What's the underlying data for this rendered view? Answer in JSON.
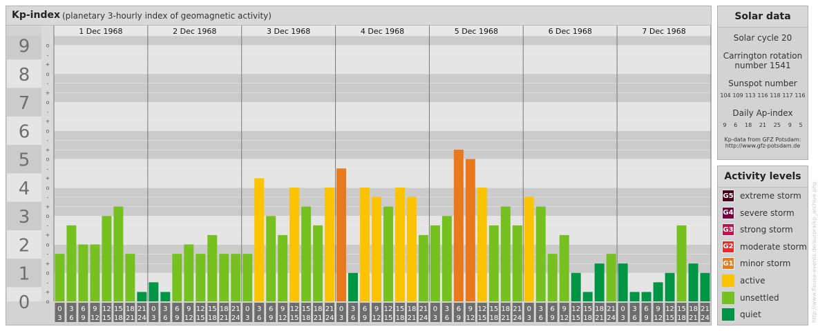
{
  "header": {
    "title": "Kp-index",
    "subtitle": "(planetary 3-hourly index of geomagnetic activity)"
  },
  "chart_data": {
    "type": "bar",
    "y_tick_labels": [
      "0",
      "1",
      "2",
      "3",
      "4",
      "5",
      "6",
      "7",
      "8",
      "9"
    ],
    "y_minor_labels": [
      "o",
      "+",
      "-",
      "o",
      "+",
      "-",
      "o",
      "+",
      "-",
      "o",
      "+",
      "-",
      "o",
      "+",
      "-",
      "o",
      "+",
      "-",
      "o",
      "+",
      "-",
      "o",
      "+",
      "-",
      "o",
      "+",
      "-",
      "o"
    ],
    "ylim": [
      0,
      9.33
    ],
    "days": [
      "1 Dec 1968",
      "2 Dec 1968",
      "3 Dec 1968",
      "4 Dec 1968",
      "5 Dec 1968",
      "6 Dec 1968",
      "7 Dec 1968"
    ],
    "interval_starts": [
      "0",
      "3",
      "6",
      "9",
      "12",
      "15",
      "18",
      "21"
    ],
    "interval_ends": [
      "3",
      "6",
      "9",
      "12",
      "15",
      "18",
      "21",
      "24"
    ],
    "values": [
      1.67,
      2.67,
      2.0,
      2.0,
      3.0,
      3.33,
      1.67,
      0.33,
      0.67,
      0.33,
      1.67,
      2.0,
      1.67,
      2.33,
      1.67,
      1.67,
      1.67,
      4.33,
      3.0,
      2.33,
      4.0,
      3.33,
      2.67,
      4.0,
      4.67,
      1.0,
      4.0,
      3.67,
      3.33,
      4.0,
      3.67,
      2.33,
      2.67,
      3.0,
      5.33,
      5.0,
      4.0,
      2.67,
      3.33,
      2.67,
      3.67,
      3.33,
      1.67,
      2.33,
      1.0,
      0.33,
      1.33,
      1.67,
      1.33,
      0.33,
      0.33,
      0.67,
      1.0,
      2.67,
      1.33,
      1.0
    ],
    "levels": [
      "unsettled",
      "unsettled",
      "unsettled",
      "unsettled",
      "unsettled",
      "unsettled",
      "unsettled",
      "quiet",
      "quiet",
      "quiet",
      "unsettled",
      "unsettled",
      "unsettled",
      "unsettled",
      "unsettled",
      "unsettled",
      "unsettled",
      "active",
      "unsettled",
      "unsettled",
      "active",
      "unsettled",
      "unsettled",
      "active",
      "minor",
      "quiet",
      "active",
      "active",
      "unsettled",
      "active",
      "active",
      "unsettled",
      "unsettled",
      "unsettled",
      "minor",
      "minor",
      "active",
      "unsettled",
      "unsettled",
      "unsettled",
      "active",
      "unsettled",
      "unsettled",
      "unsettled",
      "quiet",
      "quiet",
      "quiet",
      "unsettled",
      "quiet",
      "quiet",
      "quiet",
      "quiet",
      "quiet",
      "unsettled",
      "quiet",
      "quiet"
    ],
    "grid": true,
    "legend_position": "right"
  },
  "colors": {
    "quiet": "#009544",
    "unsettled": "#76c01f",
    "active": "#fcc400",
    "minor": "#e8791c",
    "moderate": "#e22d2a",
    "strong": "#c1124f",
    "severe": "#7a0040",
    "extreme": "#4a0018"
  },
  "solar": {
    "title": "Solar data",
    "cycle": "Solar cycle 20",
    "carrington_line1": "Carrington rotation",
    "carrington_line2": "number 1541",
    "sunspot_title": "Sunspot number",
    "sunspot_values": [
      "104",
      "109",
      "113",
      "116",
      "118",
      "117",
      "116"
    ],
    "ap_title": "Daily Ap-index",
    "ap_values": [
      "9",
      "6",
      "18",
      "21",
      "25",
      "9",
      "5"
    ],
    "credit_line1": "Kp-data from GFZ Potsdam:",
    "credit_line2": "http://www.gfz-potsdam.de"
  },
  "activity": {
    "title": "Activity levels",
    "items": [
      {
        "badge": "G5",
        "label": "extreme storm",
        "color": "#4a0018"
      },
      {
        "badge": "G4",
        "label": "severe storm",
        "color": "#7a0040"
      },
      {
        "badge": "G3",
        "label": "strong storm",
        "color": "#c1124f"
      },
      {
        "badge": "G2",
        "label": "moderate storm",
        "color": "#e22d2a"
      },
      {
        "badge": "G1",
        "label": "minor storm",
        "color": "#e8791c"
      },
      {
        "badge": "",
        "label": "active",
        "color": "#fcc400"
      },
      {
        "badge": "",
        "label": "unsettled",
        "color": "#76c01f"
      },
      {
        "badge": "",
        "label": "quiet",
        "color": "#009544"
      }
    ]
  },
  "watermark": "http://www.fleuse-events.de/aurora/kp_archive.php"
}
